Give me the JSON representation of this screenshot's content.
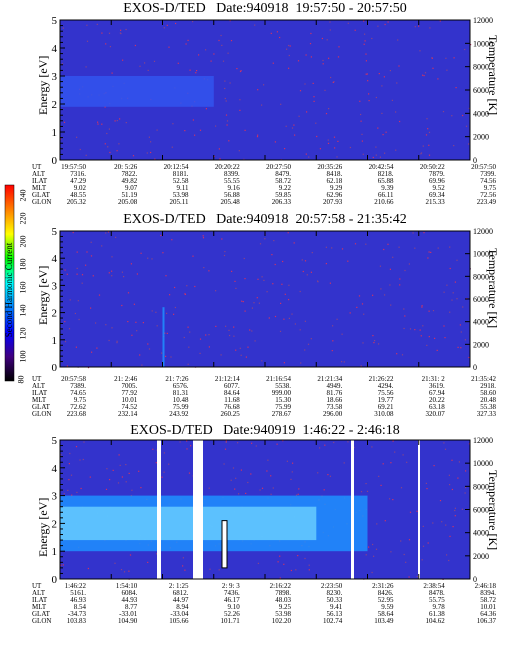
{
  "colorbar": {
    "title": "Second Harmonic Current",
    "ticks": [
      "240",
      "220",
      "200",
      "180",
      "160",
      "140",
      "120",
      "100",
      "80"
    ],
    "colors": [
      "#ff0000",
      "#ff7f00",
      "#ffff00",
      "#00ff00",
      "#00ffff",
      "#0080ff",
      "#0000ff",
      "#400080",
      "#000000"
    ]
  },
  "panels": [
    {
      "title": "EXOS-D/TED   Date:940918  19:57:50 - 20:57:50",
      "ylabel": "Energy [eV]",
      "y2label": "Temperature [K]",
      "background": "#3333cc",
      "labels": [
        "UT",
        "ALT",
        "ILAT",
        "MLT",
        "GLAT",
        "GLON"
      ],
      "columns": [
        [
          "19:57:50",
          "7316.",
          "47.29",
          "9.02",
          "48.55",
          "205.32"
        ],
        [
          "20: 5:26",
          "7822.",
          "49.82",
          "9.07",
          "51.19",
          "205.08"
        ],
        [
          "20:12:54",
          "8181.",
          "52.58",
          "9.11",
          "53.98",
          "205.11"
        ],
        [
          "20:20:22",
          "8399.",
          "55.55",
          "9.16",
          "56.88",
          "205.48"
        ],
        [
          "20:27:50",
          "8479.",
          "58.72",
          "9.22",
          "59.85",
          "206.33"
        ],
        [
          "20:35:26",
          "8418.",
          "62.18",
          "9.29",
          "62.96",
          "207.93"
        ],
        [
          "20:42:54",
          "8218.",
          "65.88",
          "9.39",
          "66.11",
          "210.66"
        ],
        [
          "20:50:22",
          "7879.",
          "69.96",
          "9.52",
          "69.34",
          "215.33"
        ],
        [
          "20:57:50",
          "7399.",
          "74.56",
          "9.75",
          "72.56",
          "223.49"
        ]
      ],
      "chart_data": {
        "type": "heatmap",
        "title": "EXOS-D/TED   Date:940918  19:57:50 - 20:57:50",
        "ylabel": "Energy [eV]",
        "y2label": "Temperature [K]",
        "ylim": [
          0,
          5
        ],
        "y2lim": [
          0,
          12000
        ],
        "yticks": [
          "0",
          "1",
          "2",
          "3",
          "4",
          "5"
        ],
        "y2ticks": [
          "0",
          "2000",
          "4000",
          "6000",
          "8000",
          "10000",
          "12000"
        ],
        "features": [
          {
            "x": [
              "19:57:50",
              "20:20:22"
            ],
            "y": [
              1.9,
              3.0
            ],
            "level": 120
          }
        ]
      }
    },
    {
      "title": "EXOS-D/TED   Date:940918  20:57:58 - 21:35:42",
      "ylabel": "Energy [eV]",
      "y2label": "Temperature [K]",
      "background": "#3333cc",
      "labels": [
        "UT",
        "ALT",
        "ILAT",
        "MLT",
        "GLAT",
        "GLON"
      ],
      "columns": [
        [
          "20:57:58",
          "7389.",
          "74.65",
          "9.75",
          "72.62",
          "223.68"
        ],
        [
          "21: 2:46",
          "7005.",
          "77.92",
          "10.01",
          "74.52",
          "232.14"
        ],
        [
          "21: 7:26",
          "6576.",
          "81.31",
          "10.48",
          "75.99",
          "243.92"
        ],
        [
          "21:12:14",
          "6077.",
          "84.64",
          "11.68",
          "76.68",
          "260.25"
        ],
        [
          "21:16:54",
          "5538.",
          "999.00",
          "15.30",
          "75.99",
          "278.67"
        ],
        [
          "21:21:34",
          "4949.",
          "81.76",
          "18.66",
          "73.58",
          "296.00"
        ],
        [
          "21:26:22",
          "4294.",
          "75.56",
          "19.77",
          "69.21",
          "310.08"
        ],
        [
          "21:31: 2",
          "3619.",
          "67.94",
          "20.22",
          "63.18",
          "320.07"
        ],
        [
          "21:35:42",
          "2918.",
          "58.60",
          "20.48",
          "55.38",
          "327.33"
        ]
      ],
      "chart_data": {
        "type": "heatmap",
        "title": "EXOS-D/TED   Date:940918  20:57:58 - 21:35:42",
        "ylabel": "Energy [eV]",
        "y2label": "Temperature [K]",
        "ylim": [
          0,
          5
        ],
        "y2lim": [
          0,
          12000
        ],
        "yticks": [
          "0",
          "1",
          "2",
          "3",
          "4",
          "5"
        ],
        "y2ticks": [
          "0",
          "2000",
          "4000",
          "6000",
          "8000",
          "10000",
          "12000"
        ],
        "features": [
          {
            "x": [
              "21: 7:26",
              "21: 7:26"
            ],
            "y": [
              0,
              2.2
            ],
            "level": 160
          }
        ]
      }
    },
    {
      "title": "EXOS-D/TED   Date:940919  1:46:22 - 2:46:18",
      "ylabel": "Energy [eV]",
      "y2label": "Temperature [K]",
      "background": "#3333cc",
      "labels": [
        "UT",
        "ALT",
        "ILAT",
        "MLT",
        "GLAT",
        "GLON"
      ],
      "columns": [
        [
          "1:46:22",
          "5161.",
          "46.93",
          "8.54",
          "-34.73",
          "103.83"
        ],
        [
          "1:54:10",
          "6084.",
          "44.93",
          "8.77",
          "-33.01",
          "104.90"
        ],
        [
          "2: 1:25",
          "6812.",
          "44.97",
          "8.94",
          "-33.04",
          "105.66"
        ],
        [
          "2: 9: 3",
          "7436.",
          "46.17",
          "9.10",
          "52.26",
          "101.71"
        ],
        [
          "2:16:22",
          "7898.",
          "48.03",
          "9.25",
          "53.98",
          "102.20"
        ],
        [
          "2:23:50",
          "8230.",
          "50.33",
          "9.41",
          "56.13",
          "102.74"
        ],
        [
          "2:31:26",
          "8426.",
          "52.95",
          "9.59",
          "58.64",
          "103.49"
        ],
        [
          "2:38:54",
          "8478.",
          "55.75",
          "9.78",
          "61.38",
          "104.62"
        ],
        [
          "2:46:18",
          "8394.",
          "58.72",
          "10.01",
          "64.36",
          "106.37"
        ]
      ],
      "chart_data": {
        "type": "heatmap",
        "title": "EXOS-D/TED   Date:940919  1:46:22 - 2:46:18",
        "ylabel": "Energy [eV]",
        "y2label": "Temperature [K]",
        "ylim": [
          0,
          5
        ],
        "y2lim": [
          0,
          12000
        ],
        "yticks": [
          "0",
          "1",
          "2",
          "3",
          "4",
          "5"
        ],
        "y2ticks": [
          "0",
          "2000",
          "4000",
          "6000",
          "8000",
          "10000",
          "12000"
        ],
        "features": [
          {
            "x": [
              "1:46:22",
              "2:31:26"
            ],
            "y": [
              1.0,
              3.0
            ],
            "level": 160
          },
          {
            "x": [
              "1:46:22",
              "2:23:50"
            ],
            "y": [
              1.4,
              2.6
            ],
            "level": 180
          }
        ]
      }
    }
  ]
}
